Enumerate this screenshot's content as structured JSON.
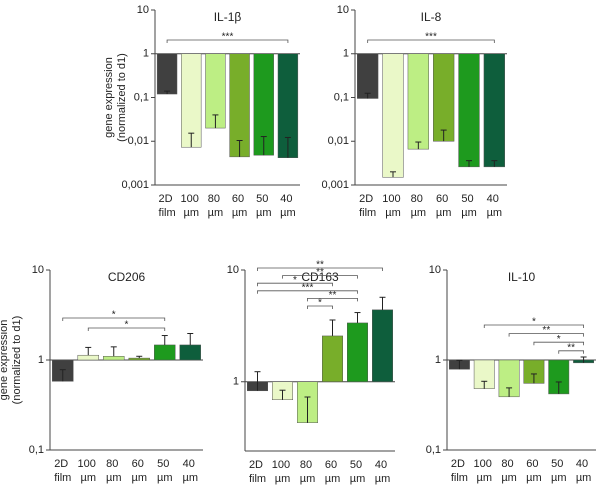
{
  "chart_data": [
    {
      "type": "bar",
      "title": "IL-1β",
      "ylabel": [
        "gene expression",
        "(normalized to d1)"
      ],
      "log_scale": true,
      "categories": [
        "2D film",
        "100 µm",
        "80 µm",
        "60 µm",
        "50 µm",
        "40 µm"
      ],
      "values": [
        0.12,
        0.0073,
        0.02,
        0.0044,
        0.0048,
        0.0042
      ],
      "errors": [
        0.02,
        0.008,
        0.02,
        0.006,
        0.008,
        0.008
      ],
      "colors": [
        "#404040",
        "#eaf8c8",
        "#bdee84",
        "#78ae2a",
        "#1e9a1e",
        "#0e5e3c"
      ],
      "ylim": [
        0.001,
        10
      ],
      "yticks": [
        {
          "value": 0.001,
          "label": "0,001"
        },
        {
          "value": 0.01,
          "label": "0,01"
        },
        {
          "value": 0.1,
          "label": "0,1"
        },
        1,
        10
      ],
      "annotations": [
        {
          "from": 0,
          "to": 5,
          "label": "***"
        }
      ]
    },
    {
      "type": "bar",
      "title": "IL-8",
      "log_scale": true,
      "categories": [
        "2D film",
        "100 µm",
        "80 µm",
        "60 µm",
        "50 µm",
        "40 µm"
      ],
      "values": [
        0.095,
        0.0015,
        0.0066,
        0.01,
        0.0026,
        0.0026
      ],
      "errors": [
        0.03,
        0.0005,
        0.003,
        0.008,
        0.001,
        0.001
      ],
      "colors": [
        "#404040",
        "#eaf8c8",
        "#bdee84",
        "#78ae2a",
        "#1e9a1e",
        "#0e5e3c"
      ],
      "ylim": [
        0.001,
        10
      ],
      "yticks": [
        {
          "value": 0.001,
          "label": "0,001"
        },
        {
          "value": 0.01,
          "label": "0,01"
        },
        {
          "value": 0.1,
          "label": "0,1"
        },
        1,
        10
      ],
      "annotations": [
        {
          "from": 0,
          "to": 5,
          "label": "***"
        }
      ]
    },
    {
      "type": "bar",
      "title": "CD206",
      "ylabel": [
        "gene expression",
        "(normalized to d1)"
      ],
      "log_scale": true,
      "categories": [
        "2D film",
        "100 µm",
        "80 µm",
        "60 µm",
        "50 µm",
        "40 µm"
      ],
      "values": [
        0.58,
        1.13,
        1.1,
        1.05,
        1.47,
        1.47
      ],
      "errors": [
        0.2,
        0.25,
        0.3,
        0.05,
        0.4,
        0.5
      ],
      "colors": [
        "#404040",
        "#eaf8c8",
        "#bdee84",
        "#78ae2a",
        "#1e9a1e",
        "#0e5e3c"
      ],
      "ylim": [
        0.1,
        10
      ],
      "yticks": [
        {
          "value": 0.1,
          "label": "0,1"
        },
        1,
        10
      ],
      "annotations": [
        {
          "from": 0,
          "to": 4,
          "label": "*"
        },
        {
          "from": 1,
          "to": 4,
          "label": "*"
        }
      ]
    },
    {
      "type": "bar",
      "title": "CD163",
      "log_scale": true,
      "categories": [
        "2D film",
        "100 µm",
        "80 µm",
        "60 µm",
        "50 µm",
        "40 µm"
      ],
      "values": [
        0.83,
        0.69,
        0.43,
        2.57,
        3.36,
        4.4
      ],
      "errors": [
        0.4,
        0.15,
        0.3,
        1,
        0.8,
        1.3
      ],
      "colors": [
        "#404040",
        "#eaf8c8",
        "#bdee84",
        "#78ae2a",
        "#1e9a1e",
        "#0e5e3c"
      ],
      "ylim": [
        0.24,
        10
      ],
      "yticks": [
        1,
        10
      ],
      "annotations": [
        {
          "from": 0,
          "to": 5,
          "label": "**"
        },
        {
          "from": 1,
          "to": 4,
          "label": "**"
        },
        {
          "from": 0,
          "to": 3,
          "label": "*"
        },
        {
          "from": 0,
          "to": 4,
          "label": "***"
        },
        {
          "from": 2,
          "to": 4,
          "label": "**"
        },
        {
          "from": 2,
          "to": 3,
          "label": "*"
        }
      ]
    },
    {
      "type": "bar",
      "title": "IL-10",
      "log_scale": true,
      "categories": [
        "2D film",
        "100 µm",
        "80 µm",
        "60 µm",
        "50 µm",
        "40 µm"
      ],
      "values": [
        0.79,
        0.48,
        0.39,
        0.55,
        0.42,
        0.93
      ],
      "errors": [
        0.2,
        0.1,
        0.1,
        0.15,
        0.15,
        0.15
      ],
      "colors": [
        "#404040",
        "#eaf8c8",
        "#bdee84",
        "#78ae2a",
        "#1e9a1e",
        "#0e5e3c"
      ],
      "ylim": [
        0.1,
        10
      ],
      "yticks": [
        {
          "value": 0.1,
          "label": "0,1"
        },
        1,
        10
      ],
      "annotations": [
        {
          "from": 1,
          "to": 5,
          "label": "*"
        },
        {
          "from": 2,
          "to": 5,
          "label": "**"
        },
        {
          "from": 3,
          "to": 5,
          "label": "*"
        },
        {
          "from": 4,
          "to": 5,
          "label": "**"
        }
      ]
    }
  ]
}
